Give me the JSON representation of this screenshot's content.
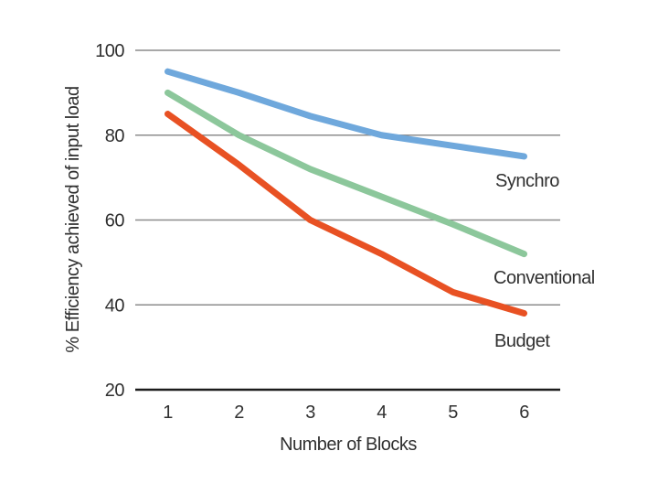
{
  "chart_data": {
    "type": "line",
    "title": "",
    "xlabel": "Number of Blocks",
    "ylabel": "% Efficiency achieved of input load",
    "x": [
      1,
      2,
      3,
      4,
      5,
      6
    ],
    "xticks": [
      1,
      2,
      3,
      4,
      5,
      6
    ],
    "yticks": [
      20,
      40,
      60,
      80,
      100
    ],
    "ylim": [
      20,
      100
    ],
    "xlim": [
      1,
      6
    ],
    "grid": "horizontal-only",
    "legend_position": "inline-right-of-lines",
    "series": [
      {
        "name": "Synchro",
        "color": "#6fa8dc",
        "values": [
          95,
          90,
          84.5,
          80,
          77.5,
          75
        ]
      },
      {
        "name": "Conventional",
        "color": "#8cc79b",
        "values": [
          90,
          80,
          72,
          65.5,
          59,
          52
        ]
      },
      {
        "name": "Budget",
        "color": "#e85123",
        "values": [
          85,
          73,
          60,
          52,
          43,
          38
        ]
      }
    ],
    "style": {
      "gridline_color": "#8c8c8c",
      "axis_color": "#1c1c1c",
      "text_color": "#303030",
      "line_width": 7
    }
  }
}
